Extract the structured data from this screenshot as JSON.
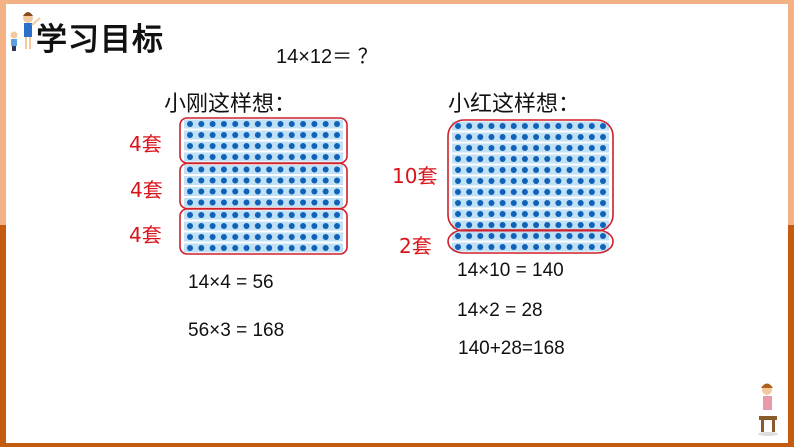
{
  "slide": {
    "title": "学习目标",
    "question": "14×12＝ ？"
  },
  "left": {
    "heading": "小刚这样想：",
    "groups": [
      {
        "label": "4套",
        "rows": 4
      },
      {
        "label": "4套",
        "rows": 4
      },
      {
        "label": "4套",
        "rows": 4
      }
    ],
    "equations": [
      "14×4 = 56",
      "56×3 = 168"
    ]
  },
  "right": {
    "heading": "小红这样想：",
    "groups": [
      {
        "label": "10套",
        "rows": 10
      },
      {
        "label": "2套",
        "rows": 2
      }
    ],
    "equations": [
      "14×10 = 140",
      "14×2 = 28",
      "140+28=168"
    ]
  },
  "dots_per_row": 14,
  "colors": {
    "dot": "#0f62b8",
    "stripe": "#bfe0f5",
    "box": "#d0202a",
    "label": "#d9141b",
    "frame_dark": "#c55a11",
    "frame_light": "#f4b183"
  }
}
